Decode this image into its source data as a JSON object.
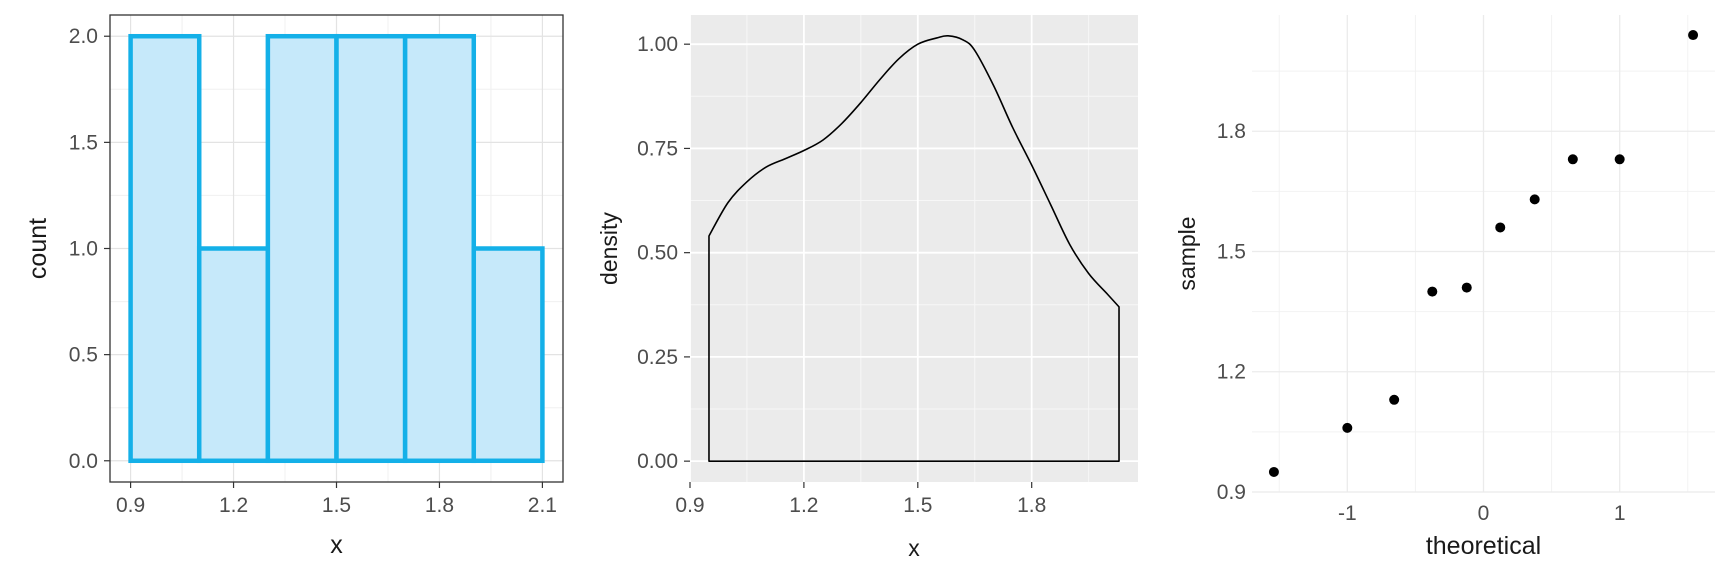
{
  "chart_data": [
    {
      "type": "histogram",
      "bins": [
        {
          "x0": 0.9,
          "x1": 1.1,
          "count": 2
        },
        {
          "x0": 1.1,
          "x1": 1.3,
          "count": 1
        },
        {
          "x0": 1.3,
          "x1": 1.5,
          "count": 2
        },
        {
          "x0": 1.5,
          "x1": 1.7,
          "count": 2
        },
        {
          "x0": 1.7,
          "x1": 1.9,
          "count": 2
        },
        {
          "x0": 1.9,
          "x1": 2.1,
          "count": 1
        }
      ],
      "xlabel": "x",
      "ylabel": "count",
      "xlim": [
        0.84,
        2.16
      ],
      "ylim": [
        -0.1,
        2.1
      ],
      "xticks": [
        0.9,
        1.2,
        1.5,
        1.8,
        2.1
      ],
      "xtick_labels": [
        "0.9",
        "1.2",
        "1.5",
        "1.8",
        "2.1"
      ],
      "yticks": [
        0,
        0.5,
        1,
        1.5,
        2
      ],
      "ytick_labels": [
        "0.0",
        "0.5",
        "1.0",
        "1.5",
        "2.0"
      ],
      "theme": "bw",
      "grid": true,
      "colors": {
        "fill": "#c6e9fa",
        "outline": "#14b0e8"
      }
    },
    {
      "type": "line",
      "x": [
        0.95,
        1.0,
        1.05,
        1.1,
        1.15,
        1.2,
        1.25,
        1.3,
        1.35,
        1.4,
        1.45,
        1.5,
        1.55,
        1.58,
        1.62,
        1.65,
        1.7,
        1.75,
        1.8,
        1.85,
        1.9,
        1.95,
        2.0,
        2.03
      ],
      "y": [
        0.54,
        0.62,
        0.67,
        0.705,
        0.725,
        0.745,
        0.77,
        0.81,
        0.86,
        0.915,
        0.965,
        1.0,
        1.015,
        1.02,
        1.01,
        0.985,
        0.9,
        0.8,
        0.71,
        0.615,
        0.52,
        0.45,
        0.4,
        0.37
      ],
      "fill_to_zero": true,
      "xlabel": "x",
      "ylabel": "density",
      "xlim": [
        0.9,
        2.08
      ],
      "ylim": [
        -0.05,
        1.07
      ],
      "xticks": [
        0.9,
        1.2,
        1.5,
        1.8
      ],
      "xtick_labels": [
        "0.9",
        "1.2",
        "1.5",
        "1.8"
      ],
      "yticks": [
        0,
        0.25,
        0.5,
        0.75,
        1
      ],
      "ytick_labels": [
        "0.00",
        "0.25",
        "0.50",
        "0.75",
        "1.00"
      ],
      "theme": "gray",
      "grid": true
    },
    {
      "type": "scatter",
      "x": [
        -1.539,
        -1.0,
        -0.656,
        -0.376,
        -0.123,
        0.123,
        0.376,
        0.656,
        1.0,
        1.539
      ],
      "y": [
        0.95,
        1.06,
        1.13,
        1.4,
        1.41,
        1.56,
        1.63,
        1.73,
        1.73,
        2.04
      ],
      "xlabel": "theoretical",
      "ylabel": "sample",
      "xlim": [
        -1.7,
        1.7
      ],
      "ylim": [
        0.9,
        2.09
      ],
      "xticks": [
        -1,
        0,
        1
      ],
      "xtick_labels": [
        "-1",
        "0",
        "1"
      ],
      "yticks": [
        0.9,
        1.2,
        1.5,
        1.8
      ],
      "ytick_labels": [
        "0.9",
        "1.2",
        "1.5",
        "1.8"
      ],
      "theme": "minimal",
      "grid": true
    }
  ]
}
